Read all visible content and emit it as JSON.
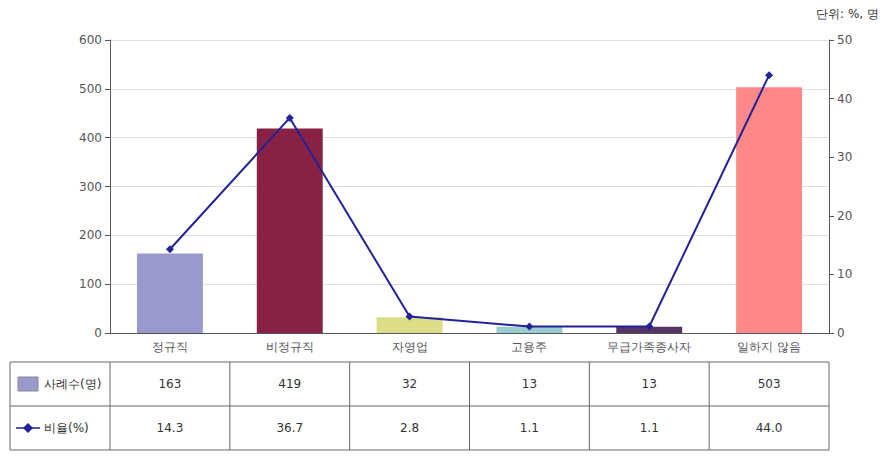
{
  "chart_data": {
    "type": "bar",
    "categories": [
      "정규직",
      "비정규직",
      "자영업",
      "고용주",
      "무급가족종사자",
      "일하지 않음"
    ],
    "series": [
      {
        "name": "사례수(명)",
        "type": "bar",
        "colors": [
          "#9999cc",
          "#882244",
          "#dddd88",
          "#99cccc",
          "#553366",
          "#ff8888"
        ],
        "values": [
          163,
          419,
          32,
          13,
          13,
          503
        ]
      },
      {
        "name": "비율(%)",
        "type": "line",
        "axis": "y2",
        "color": "#222299",
        "marker": "diamond",
        "values": [
          14.3,
          36.7,
          2.8,
          1.1,
          1.1,
          44.0
        ],
        "value_labels": [
          "14.3",
          "36.7",
          "2.8",
          "1.1",
          "1.1",
          "44.0"
        ]
      }
    ],
    "ylim": [
      0,
      600
    ],
    "yticks": [
      0,
      100,
      200,
      300,
      400,
      500,
      600
    ],
    "y2lim": [
      0,
      50
    ],
    "y2ticks": [
      0,
      10,
      20,
      30,
      40,
      50
    ],
    "grid": true,
    "data_labels": true,
    "annotations": [
      "단위: %, 명"
    ]
  }
}
